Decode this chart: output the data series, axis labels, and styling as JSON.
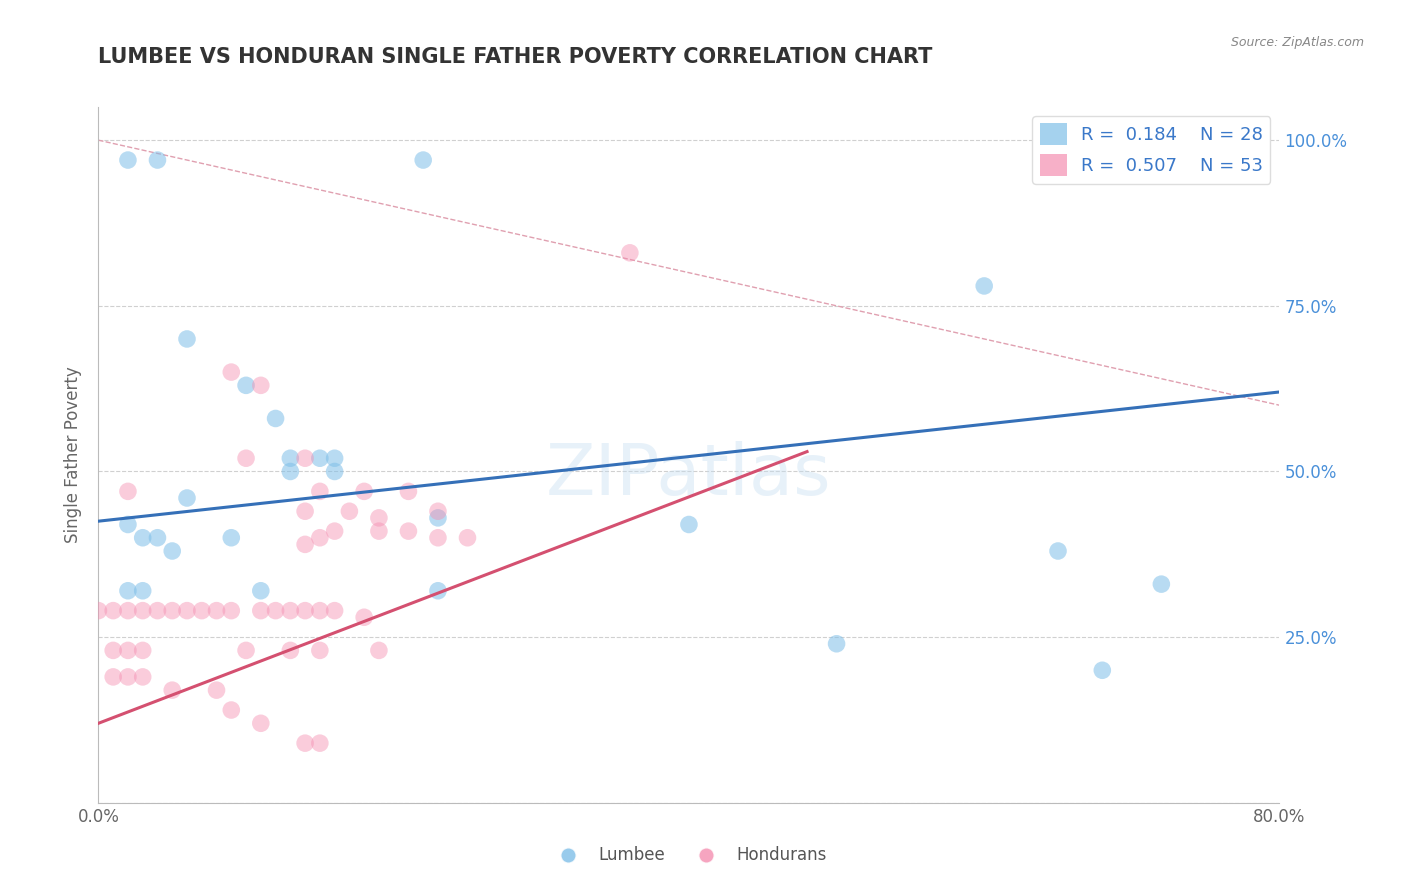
{
  "title": "LUMBEE VS HONDURAN SINGLE FATHER POVERTY CORRELATION CHART",
  "source": "Source: ZipAtlas.com",
  "ylabel": "Single Father Poverty",
  "xlim": [
    0.0,
    0.8
  ],
  "ylim": [
    0.0,
    1.05
  ],
  "x_ticks": [
    0.0,
    0.2,
    0.4,
    0.6,
    0.8
  ],
  "x_tick_labels": [
    "0.0%",
    "",
    "",
    "",
    "80.0%"
  ],
  "y_ticks": [
    0.0,
    0.25,
    0.5,
    0.75,
    1.0
  ],
  "y_tick_labels_right": [
    "",
    "25.0%",
    "50.0%",
    "75.0%",
    "100.0%"
  ],
  "grid_color": "#d0d0d0",
  "background_color": "#ffffff",
  "watermark": "ZIPatlas",
  "lumbee_color": "#7fbfe8",
  "honduran_color": "#f48fb1",
  "lumbee_line_color": "#3570b8",
  "honduran_line_color": "#d45070",
  "diagonal_color": "#e0a0b0",
  "lumbee_R": 0.184,
  "lumbee_N": 28,
  "honduran_R": 0.507,
  "honduran_N": 53,
  "lumbee_points": [
    [
      0.02,
      0.97
    ],
    [
      0.04,
      0.97
    ],
    [
      0.22,
      0.97
    ],
    [
      0.06,
      0.7
    ],
    [
      0.1,
      0.63
    ],
    [
      0.12,
      0.58
    ],
    [
      0.13,
      0.52
    ],
    [
      0.15,
      0.52
    ],
    [
      0.16,
      0.52
    ],
    [
      0.06,
      0.46
    ],
    [
      0.13,
      0.5
    ],
    [
      0.16,
      0.5
    ],
    [
      0.02,
      0.42
    ],
    [
      0.03,
      0.4
    ],
    [
      0.04,
      0.4
    ],
    [
      0.09,
      0.4
    ],
    [
      0.02,
      0.32
    ],
    [
      0.03,
      0.32
    ],
    [
      0.11,
      0.32
    ],
    [
      0.23,
      0.32
    ],
    [
      0.23,
      0.43
    ],
    [
      0.4,
      0.42
    ],
    [
      0.6,
      0.78
    ],
    [
      0.65,
      0.38
    ],
    [
      0.72,
      0.33
    ],
    [
      0.5,
      0.24
    ],
    [
      0.68,
      0.2
    ],
    [
      0.05,
      0.38
    ]
  ],
  "honduran_points": [
    [
      0.36,
      0.83
    ],
    [
      0.02,
      0.47
    ],
    [
      0.09,
      0.65
    ],
    [
      0.11,
      0.63
    ],
    [
      0.1,
      0.52
    ],
    [
      0.14,
      0.52
    ],
    [
      0.15,
      0.47
    ],
    [
      0.18,
      0.47
    ],
    [
      0.21,
      0.47
    ],
    [
      0.14,
      0.44
    ],
    [
      0.17,
      0.44
    ],
    [
      0.19,
      0.43
    ],
    [
      0.23,
      0.44
    ],
    [
      0.14,
      0.39
    ],
    [
      0.15,
      0.4
    ],
    [
      0.16,
      0.41
    ],
    [
      0.19,
      0.41
    ],
    [
      0.21,
      0.41
    ],
    [
      0.23,
      0.4
    ],
    [
      0.25,
      0.4
    ],
    [
      0.01,
      0.29
    ],
    [
      0.02,
      0.29
    ],
    [
      0.03,
      0.29
    ],
    [
      0.04,
      0.29
    ],
    [
      0.05,
      0.29
    ],
    [
      0.06,
      0.29
    ],
    [
      0.07,
      0.29
    ],
    [
      0.08,
      0.29
    ],
    [
      0.09,
      0.29
    ],
    [
      0.11,
      0.29
    ],
    [
      0.12,
      0.29
    ],
    [
      0.13,
      0.29
    ],
    [
      0.14,
      0.29
    ],
    [
      0.15,
      0.29
    ],
    [
      0.16,
      0.29
    ],
    [
      0.18,
      0.28
    ],
    [
      0.01,
      0.23
    ],
    [
      0.02,
      0.23
    ],
    [
      0.03,
      0.23
    ],
    [
      0.1,
      0.23
    ],
    [
      0.13,
      0.23
    ],
    [
      0.15,
      0.23
    ],
    [
      0.19,
      0.23
    ],
    [
      0.01,
      0.19
    ],
    [
      0.02,
      0.19
    ],
    [
      0.03,
      0.19
    ],
    [
      0.05,
      0.17
    ],
    [
      0.08,
      0.17
    ],
    [
      0.09,
      0.14
    ],
    [
      0.11,
      0.12
    ],
    [
      0.0,
      0.29
    ],
    [
      0.15,
      0.09
    ],
    [
      0.14,
      0.09
    ]
  ],
  "lumbee_line": {
    "x0": 0.0,
    "y0": 0.425,
    "x1": 0.8,
    "y1": 0.62
  },
  "honduran_line": {
    "x0": 0.0,
    "y0": 0.12,
    "x1": 0.48,
    "y1": 0.53
  },
  "diagonal_line": {
    "x0": 0.0,
    "y0": 1.0,
    "x1": 0.8,
    "y1": 0.6
  }
}
